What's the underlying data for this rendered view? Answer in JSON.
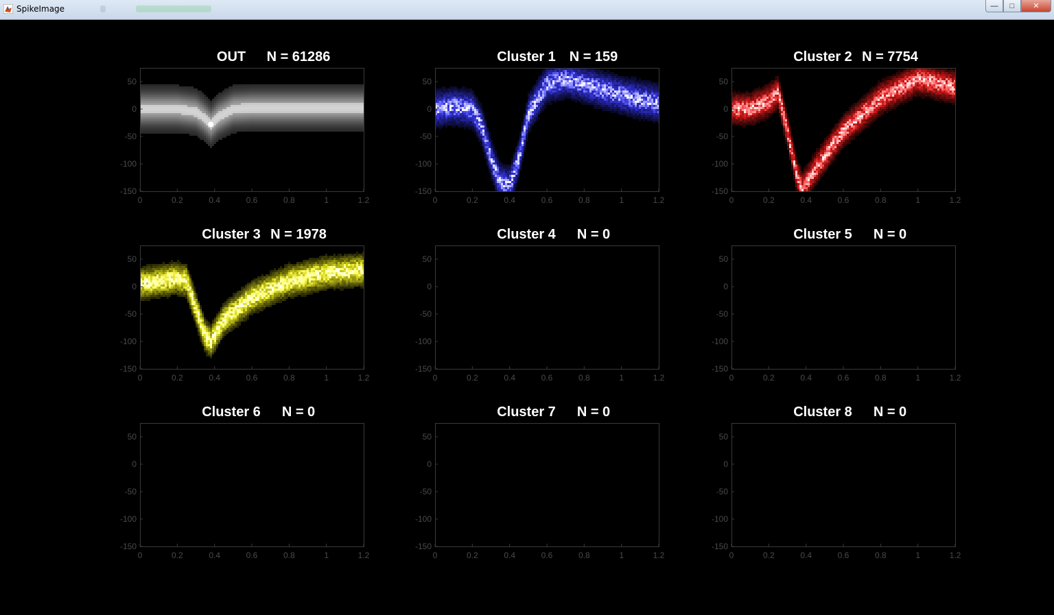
{
  "window": {
    "title": "SpikeImage",
    "buttons": {
      "minimize": "—",
      "maximize": "□",
      "close": "✕"
    }
  },
  "colors": {
    "OUT": "#ffffff",
    "Cluster 1": "#3a3aff",
    "Cluster 2": "#ff2020",
    "Cluster 3": "#ffff20",
    "axis": "#3a3a3a",
    "tick_label": "#4a4a4a",
    "title": "#ffffff"
  },
  "chart_data": [
    {
      "type": "heatmap",
      "name": "OUT",
      "count_label": "N = 61286",
      "color": "#ffffff",
      "xlim": [
        0,
        1.2
      ],
      "ylim": [
        -150,
        75
      ],
      "xticks": [
        "0",
        "0.2",
        "0.4",
        "0.6",
        "0.8",
        "1",
        "1.2"
      ],
      "yticks": [
        "50",
        "0",
        "-50",
        "-100",
        "-150"
      ],
      "waveform": {
        "x": [
          0,
          0.2,
          0.3,
          0.34,
          0.38,
          0.42,
          0.5,
          0.6,
          0.8,
          1.0,
          1.2
        ],
        "y": [
          0,
          0,
          -5,
          -15,
          -28,
          -15,
          0,
          2,
          2,
          2,
          2
        ]
      }
    },
    {
      "type": "heatmap",
      "name": "Cluster 1",
      "count_label": "N = 159",
      "color": "#3a3aff",
      "xlim": [
        0,
        1.2
      ],
      "ylim": [
        -150,
        75
      ],
      "xticks": [
        "0",
        "0.2",
        "0.4",
        "0.6",
        "0.8",
        "1",
        "1.2"
      ],
      "yticks": [
        "50",
        "0",
        "-50",
        "-100",
        "-150"
      ],
      "waveform": {
        "x": [
          0,
          0.1,
          0.2,
          0.25,
          0.3,
          0.35,
          0.4,
          0.45,
          0.5,
          0.6,
          0.7,
          0.8,
          1.0,
          1.2
        ],
        "y": [
          0,
          5,
          0,
          -30,
          -90,
          -135,
          -140,
          -90,
          -10,
          45,
          55,
          45,
          25,
          10
        ]
      }
    },
    {
      "type": "heatmap",
      "name": "Cluster 2",
      "count_label": "N = 7754",
      "color": "#ff2020",
      "xlim": [
        0,
        1.2
      ],
      "ylim": [
        -150,
        75
      ],
      "xticks": [
        "0",
        "0.2",
        "0.4",
        "0.6",
        "0.8",
        "1",
        "1.2"
      ],
      "yticks": [
        "50",
        "0",
        "-50",
        "-100",
        "-150"
      ],
      "waveform": {
        "x": [
          0,
          0.1,
          0.2,
          0.25,
          0.3,
          0.35,
          0.38,
          0.45,
          0.6,
          0.8,
          1.0,
          1.2
        ],
        "y": [
          0,
          0,
          15,
          30,
          -40,
          -120,
          -145,
          -110,
          -40,
          20,
          55,
          40
        ]
      }
    },
    {
      "type": "heatmap",
      "name": "Cluster 3",
      "count_label": "N = 1978",
      "color": "#ffff20",
      "xlim": [
        0,
        1.2
      ],
      "ylim": [
        -150,
        75
      ],
      "xticks": [
        "0",
        "0.2",
        "0.4",
        "0.6",
        "0.8",
        "1",
        "1.2"
      ],
      "yticks": [
        "50",
        "0",
        "-50",
        "-100",
        "-150"
      ],
      "waveform": {
        "x": [
          0,
          0.1,
          0.2,
          0.25,
          0.3,
          0.35,
          0.38,
          0.45,
          0.6,
          0.8,
          1.0,
          1.2
        ],
        "y": [
          5,
          10,
          15,
          10,
          -40,
          -90,
          -100,
          -60,
          -20,
          10,
          25,
          30
        ]
      }
    },
    {
      "type": "heatmap",
      "name": "Cluster 4",
      "count_label": "N = 0",
      "xlim": [
        0,
        1.2
      ],
      "ylim": [
        -150,
        75
      ],
      "xticks": [
        "0",
        "0.2",
        "0.4",
        "0.6",
        "0.8",
        "1",
        "1.2"
      ],
      "yticks": [
        "50",
        "0",
        "-50",
        "-100",
        "-150"
      ],
      "waveform": null
    },
    {
      "type": "heatmap",
      "name": "Cluster 5",
      "count_label": "N = 0",
      "xlim": [
        0,
        1.2
      ],
      "ylim": [
        -150,
        75
      ],
      "xticks": [
        "0",
        "0.2",
        "0.4",
        "0.6",
        "0.8",
        "1",
        "1.2"
      ],
      "yticks": [
        "50",
        "0",
        "-50",
        "-100",
        "-150"
      ],
      "waveform": null
    },
    {
      "type": "heatmap",
      "name": "Cluster 6",
      "count_label": "N = 0",
      "xlim": [
        0,
        1.2
      ],
      "ylim": [
        -150,
        75
      ],
      "xticks": [
        "0",
        "0.2",
        "0.4",
        "0.6",
        "0.8",
        "1",
        "1.2"
      ],
      "yticks": [
        "50",
        "0",
        "-50",
        "-100",
        "-150"
      ],
      "waveform": null
    },
    {
      "type": "heatmap",
      "name": "Cluster 7",
      "count_label": "N = 0",
      "xlim": [
        0,
        1.2
      ],
      "ylim": [
        -150,
        75
      ],
      "xticks": [
        "0",
        "0.2",
        "0.4",
        "0.6",
        "0.8",
        "1",
        "1.2"
      ],
      "yticks": [
        "50",
        "0",
        "-50",
        "-100",
        "-150"
      ],
      "waveform": null
    },
    {
      "type": "heatmap",
      "name": "Cluster 8",
      "count_label": "N = 0",
      "xlim": [
        0,
        1.2
      ],
      "ylim": [
        -150,
        75
      ],
      "xticks": [
        "0",
        "0.2",
        "0.4",
        "0.6",
        "0.8",
        "1",
        "1.2"
      ],
      "yticks": [
        "50",
        "0",
        "-50",
        "-100",
        "-150"
      ],
      "waveform": null
    }
  ]
}
